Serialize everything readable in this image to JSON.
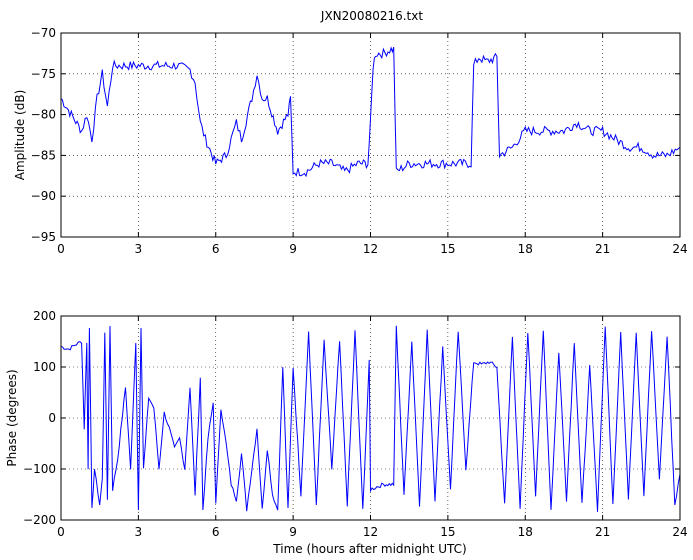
{
  "title": "JXN20080216.txt",
  "chart_data": [
    {
      "type": "line",
      "name": "amplitude",
      "title": "JXN20080216.txt",
      "xlabel": "",
      "ylabel": "Amplitude (dB)",
      "xlim": [
        0,
        24
      ],
      "ylim": [
        -95,
        -70
      ],
      "xticks": [
        0,
        3,
        6,
        9,
        12,
        15,
        18,
        21,
        24
      ],
      "yticks": [
        -95,
        -90,
        -85,
        -80,
        -75,
        -70
      ],
      "grid": true,
      "line_color": "#0000ff",
      "x": [
        0,
        0.4,
        0.8,
        1.0,
        1.2,
        1.4,
        1.6,
        1.8,
        2.0,
        2.5,
        3.0,
        3.5,
        4.0,
        4.5,
        5.0,
        5.2,
        5.4,
        5.6,
        6.0,
        6.4,
        6.6,
        6.8,
        7.0,
        7.4,
        7.6,
        7.8,
        8.0,
        8.4,
        8.8,
        8.9,
        9.0,
        9.5,
        10.0,
        10.5,
        11.0,
        11.5,
        11.9,
        12.0,
        12.1,
        12.2,
        12.5,
        12.8,
        12.9,
        13.0,
        13.5,
        14.0,
        14.5,
        15.0,
        15.5,
        15.9,
        16.0,
        16.2,
        16.5,
        16.9,
        17.0,
        17.5,
        18.0,
        18.5,
        19.0,
        19.5,
        20.0,
        20.5,
        21.0,
        21.5,
        22.0,
        22.5,
        23.0,
        23.5,
        24.0
      ],
      "y": [
        -78,
        -80,
        -82,
        -80,
        -83,
        -78,
        -75,
        -79,
        -74,
        -74,
        -74,
        -74,
        -74,
        -74,
        -74.5,
        -76,
        -81,
        -83,
        -86,
        -85,
        -83,
        -81,
        -83,
        -78,
        -75,
        -78,
        -78,
        -82,
        -80,
        -78,
        -87,
        -87,
        -86,
        -86,
        -87,
        -86,
        -86,
        -81,
        -74,
        -72.5,
        -72.5,
        -72,
        -72,
        -87,
        -86,
        -86,
        -86,
        -86,
        -86,
        -86,
        -74,
        -73,
        -73.5,
        -73,
        -85,
        -84,
        -82,
        -82,
        -82,
        -82,
        -81,
        -82,
        -82,
        -83,
        -84,
        -84,
        -85,
        -85,
        -84
      ]
    },
    {
      "type": "line",
      "name": "phase",
      "title": "",
      "xlabel": "Time (hours after midnight UTC)",
      "ylabel": "Phase (degrees)",
      "xlim": [
        0,
        24
      ],
      "ylim": [
        -200,
        200
      ],
      "xticks": [
        0,
        3,
        6,
        9,
        12,
        15,
        18,
        21,
        24
      ],
      "yticks": [
        -200,
        -100,
        0,
        100,
        200
      ],
      "grid": true,
      "line_color": "#0000ff",
      "x": [
        0,
        0.3,
        0.6,
        0.8,
        0.9,
        1.0,
        1.05,
        1.1,
        1.2,
        1.3,
        1.5,
        1.6,
        1.7,
        1.8,
        1.9,
        2.0,
        2.2,
        2.5,
        2.7,
        2.9,
        3.0,
        3.1,
        3.2,
        3.4,
        3.6,
        3.8,
        4.0,
        4.2,
        4.4,
        4.6,
        4.8,
        5.0,
        5.2,
        5.4,
        5.5,
        5.7,
        5.9,
        6.0,
        6.2,
        6.4,
        6.6,
        6.8,
        7.0,
        7.2,
        7.4,
        7.6,
        7.8,
        8.0,
        8.2,
        8.4,
        8.6,
        8.8,
        9.0,
        9.3,
        9.6,
        9.9,
        10.2,
        10.5,
        10.8,
        11.1,
        11.4,
        11.7,
        11.95,
        12.0,
        12.5,
        12.9,
        13.0,
        13.3,
        13.6,
        13.9,
        14.2,
        14.5,
        14.8,
        15.1,
        15.4,
        15.7,
        16.0,
        16.3,
        16.6,
        16.9,
        17.2,
        17.5,
        17.8,
        18.1,
        18.4,
        18.7,
        19.0,
        19.3,
        19.6,
        19.9,
        20.2,
        20.5,
        20.8,
        21.1,
        21.4,
        21.7,
        22.0,
        22.3,
        22.6,
        22.9,
        23.2,
        23.5,
        23.8,
        24.0
      ],
      "y": [
        140,
        135,
        145,
        150,
        -20,
        150,
        -100,
        180,
        -180,
        -100,
        -170,
        -120,
        170,
        -160,
        180,
        -140,
        -80,
        60,
        -100,
        150,
        -180,
        180,
        -100,
        40,
        20,
        -100,
        10,
        -20,
        -60,
        -40,
        -100,
        60,
        -150,
        80,
        -180,
        -40,
        30,
        -170,
        20,
        -50,
        -130,
        -160,
        -70,
        -180,
        -100,
        -20,
        -180,
        -60,
        -150,
        -180,
        100,
        -180,
        100,
        -150,
        170,
        -170,
        150,
        -100,
        150,
        -170,
        170,
        -180,
        110,
        -140,
        -130,
        -130,
        180,
        -150,
        150,
        -170,
        170,
        -160,
        140,
        -140,
        170,
        -100,
        110,
        105,
        110,
        100,
        -170,
        160,
        -180,
        170,
        -150,
        170,
        -180,
        130,
        -160,
        150,
        -170,
        100,
        -180,
        180,
        -170,
        170,
        -160,
        170,
        -150,
        170,
        -120,
        160,
        -170,
        -110
      ]
    }
  ],
  "axes": {
    "top": {
      "xtick_labels": [
        "0",
        "3",
        "6",
        "9",
        "12",
        "15",
        "18",
        "21",
        "24"
      ],
      "ytick_labels": [
        "−95",
        "−90",
        "−85",
        "−80",
        "−75",
        "−70"
      ]
    },
    "bottom": {
      "xtick_labels": [
        "0",
        "3",
        "6",
        "9",
        "12",
        "15",
        "18",
        "21",
        "24"
      ],
      "ytick_labels": [
        "−200",
        "−100",
        "0",
        "100",
        "200"
      ]
    }
  }
}
